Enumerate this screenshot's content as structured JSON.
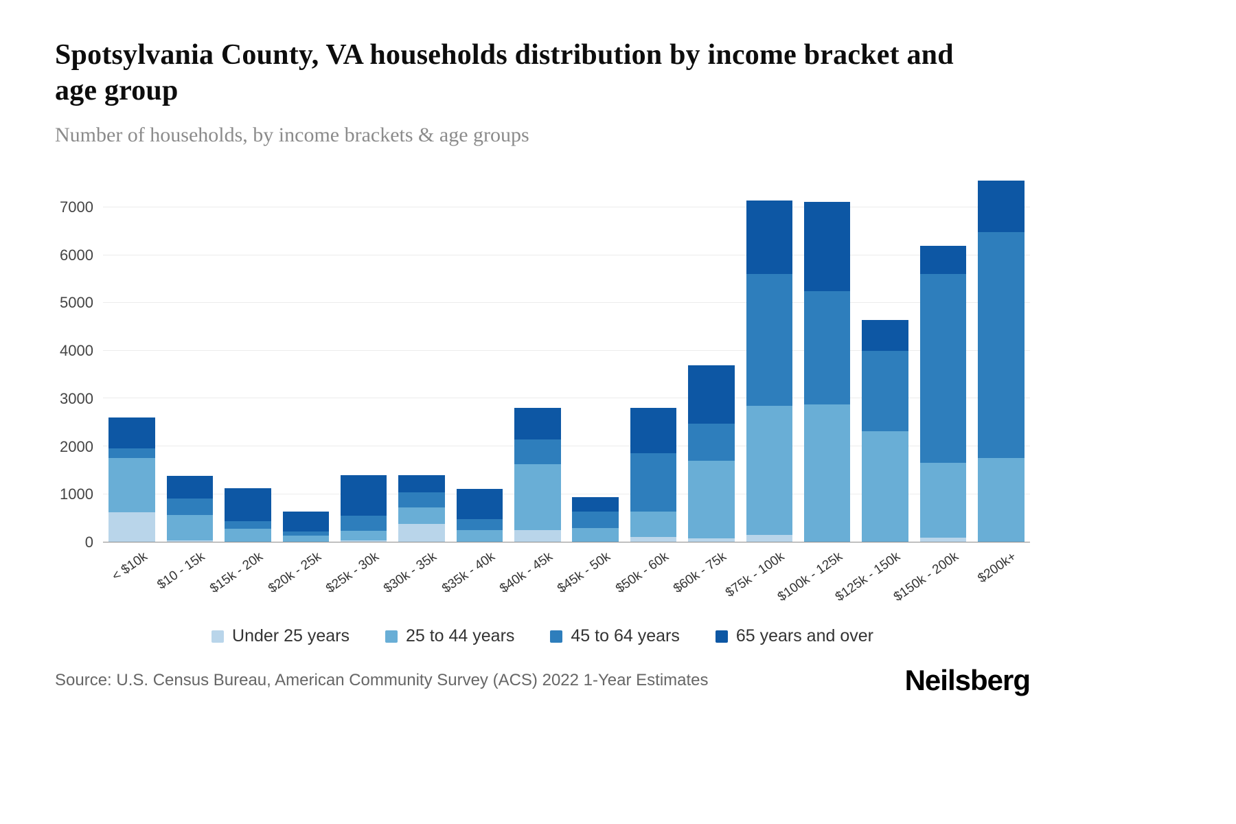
{
  "header": {
    "title": "Spotsylvania County, VA households distribution by income bracket and age group",
    "subtitle": "Number of households, by income brackets & age groups"
  },
  "footer": {
    "source": "Source: U.S. Census Bureau, American Community Survey (ACS) 2022 1-Year Estimates",
    "logo": "Neilsberg"
  },
  "chart_data": {
    "type": "bar",
    "stacked": true,
    "title": "Spotsylvania County, VA households distribution by income bracket and age group",
    "xlabel": "",
    "ylabel": "Number of households",
    "grid": true,
    "legend_position": "bottom",
    "y_ticks": [
      0,
      1000,
      2000,
      3000,
      4000,
      5000,
      6000,
      7000
    ],
    "y_scale_max": 7600,
    "categories": [
      "< $10k",
      "$10 - 15k",
      "$15k - 20k",
      "$20k - 25k",
      "$25k - 30k",
      "$30k - 35k",
      "$35k - 40k",
      "$40k - 45k",
      "$45k - 50k",
      "$50k - 60k",
      "$60k - 75k",
      "$75k - 100k",
      "$100k - 125k",
      "$125k - 150k",
      "$150k - 200k",
      "$200k+"
    ],
    "series": [
      {
        "name": "Under 25 years",
        "color": "#b9d5ea",
        "values": [
          620,
          30,
          0,
          0,
          30,
          380,
          0,
          240,
          0,
          100,
          80,
          150,
          0,
          0,
          90,
          0
        ]
      },
      {
        "name": "25 to 44 years",
        "color": "#69aed6",
        "values": [
          1130,
          530,
          280,
          130,
          200,
          340,
          250,
          1380,
          290,
          530,
          1620,
          2700,
          2870,
          2310,
          1570,
          1760
        ]
      },
      {
        "name": "45 to 64 years",
        "color": "#2e7ebc",
        "values": [
          200,
          350,
          150,
          90,
          320,
          320,
          230,
          530,
          350,
          1220,
          770,
          2750,
          2380,
          1690,
          3950,
          4720
        ]
      },
      {
        "name": "65 years and over",
        "color": "#0d57a4",
        "values": [
          650,
          470,
          700,
          420,
          840,
          360,
          630,
          650,
          290,
          950,
          1220,
          1540,
          1860,
          640,
          590,
          1080
        ]
      }
    ]
  }
}
